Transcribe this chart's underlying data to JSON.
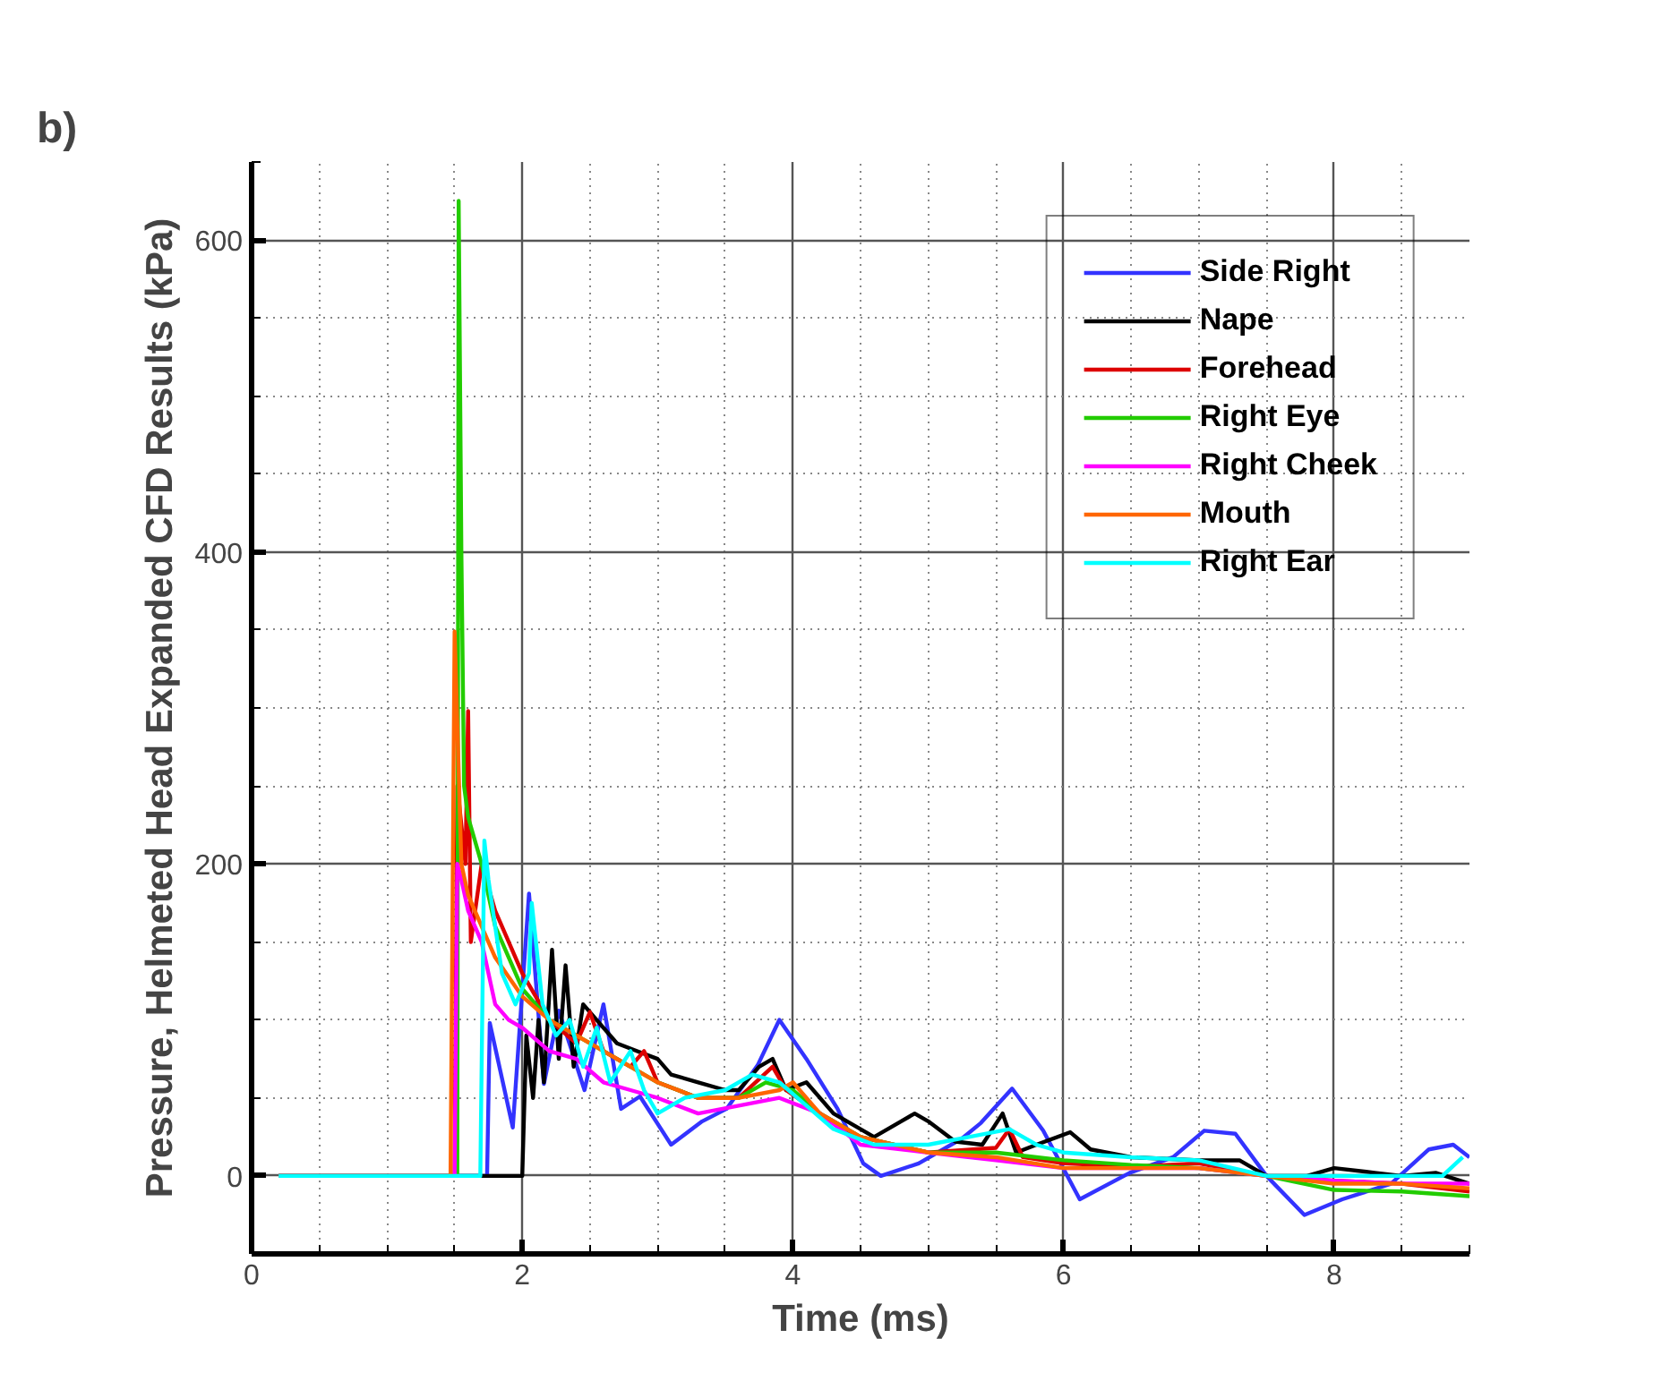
{
  "chart_data": {
    "type": "line",
    "xlabel": "Time (ms)",
    "ylabel": "Pressure, Helmeted Head Expanded CFD Results (kPa)",
    "annotations": [
      "b)"
    ],
    "xlim": [
      0,
      9
    ],
    "ylim": [
      -50,
      650
    ],
    "xticks": [
      0,
      2,
      4,
      6,
      8
    ],
    "yticks": [
      0,
      200,
      400,
      600
    ],
    "grid": true,
    "legend": "top right",
    "line_style": "solid",
    "series": [
      {
        "name": "Side Right",
        "color": "#3333ff",
        "x": [
          0.2,
          1.74,
          1.76,
          1.93,
          2.05,
          2.16,
          2.27,
          2.46,
          2.6,
          2.73,
          2.87,
          3.1,
          3.33,
          3.51,
          3.74,
          3.9,
          4.1,
          4.33,
          4.52,
          4.65,
          4.93,
          5.25,
          5.39,
          5.62,
          5.85,
          6.12,
          6.49,
          6.81,
          7.04,
          7.27,
          7.5,
          7.78,
          8.06,
          8.42,
          8.7,
          8.88,
          9.0
        ],
        "values": [
          0,
          0,
          98,
          31,
          181,
          59,
          106,
          55,
          110,
          43,
          51,
          20,
          35,
          43,
          71,
          100,
          75,
          43,
          8,
          0,
          8,
          24,
          34,
          56,
          29,
          -15,
          2,
          12,
          29,
          27,
          0,
          -25,
          -15,
          -5,
          17,
          20,
          12
        ]
      },
      {
        "name": "Nape",
        "color": "#000000",
        "x": [
          0.2,
          2.0,
          2.03,
          2.08,
          2.12,
          2.16,
          2.22,
          2.27,
          2.32,
          2.38,
          2.45,
          2.55,
          2.7,
          2.85,
          3.0,
          3.1,
          3.3,
          3.5,
          3.6,
          3.75,
          3.85,
          3.95,
          4.1,
          4.3,
          4.6,
          4.8,
          4.9,
          5.0,
          5.2,
          5.4,
          5.55,
          5.65,
          5.8,
          6.05,
          6.2,
          6.5,
          7.0,
          7.3,
          7.5,
          7.8,
          8.0,
          8.3,
          8.5,
          8.75,
          9.0
        ],
        "values": [
          0,
          0,
          90,
          50,
          100,
          60,
          145,
          75,
          135,
          70,
          110,
          100,
          85,
          80,
          75,
          65,
          60,
          55,
          55,
          70,
          75,
          55,
          60,
          40,
          25,
          35,
          40,
          35,
          22,
          20,
          40,
          15,
          20,
          28,
          17,
          12,
          10,
          10,
          0,
          0,
          5,
          2,
          0,
          2,
          -5
        ]
      },
      {
        "name": "Forehead",
        "color": "#dd0000",
        "x": [
          0.2,
          1.5,
          1.52,
          1.58,
          1.6,
          1.62,
          1.7,
          1.8,
          2.0,
          2.2,
          2.4,
          2.5,
          2.6,
          2.8,
          2.9,
          3.0,
          3.3,
          3.6,
          3.85,
          3.95,
          4.2,
          4.5,
          5.0,
          5.5,
          5.6,
          5.7,
          6.0,
          6.5,
          7.0,
          7.5,
          8.0,
          8.5,
          9.0
        ],
        "values": [
          0,
          0,
          250,
          200,
          298,
          150,
          200,
          170,
          130,
          100,
          85,
          105,
          80,
          70,
          80,
          60,
          50,
          50,
          70,
          55,
          40,
          25,
          15,
          18,
          30,
          12,
          8,
          6,
          8,
          0,
          -3,
          -5,
          -10
        ]
      },
      {
        "name": "Right Eye",
        "color": "#22cc00",
        "x": [
          0.2,
          1.52,
          1.53,
          1.55,
          1.57,
          1.6,
          1.7,
          1.8,
          2.0,
          2.2,
          2.5,
          2.8,
          3.0,
          3.3,
          3.6,
          3.8,
          4.0,
          4.2,
          4.5,
          5.0,
          5.5,
          6.0,
          6.5,
          7.0,
          7.5,
          8.0,
          8.5,
          9.0
        ],
        "values": [
          0,
          0,
          625,
          400,
          250,
          230,
          200,
          160,
          120,
          100,
          85,
          70,
          60,
          50,
          50,
          60,
          55,
          40,
          25,
          15,
          15,
          10,
          7,
          5,
          0,
          -9,
          -10,
          -13
        ]
      },
      {
        "name": "Right Cheek",
        "color": "#ff00ff",
        "x": [
          0.2,
          1.5,
          1.52,
          1.55,
          1.6,
          1.7,
          1.8,
          1.9,
          2.0,
          2.2,
          2.4,
          2.6,
          2.8,
          3.0,
          3.3,
          3.6,
          3.9,
          4.2,
          4.5,
          5.0,
          5.5,
          6.0,
          6.5,
          7.0,
          7.5,
          8.0,
          8.5,
          9.0
        ],
        "values": [
          0,
          0,
          200,
          190,
          170,
          150,
          110,
          100,
          95,
          80,
          75,
          60,
          55,
          50,
          40,
          45,
          50,
          40,
          20,
          15,
          10,
          5,
          5,
          5,
          0,
          -3,
          -5,
          -5
        ]
      },
      {
        "name": "Mouth",
        "color": "#ff6600",
        "x": [
          0.2,
          1.47,
          1.5,
          1.55,
          1.6,
          1.7,
          1.8,
          2.0,
          2.2,
          2.5,
          2.8,
          3.0,
          3.3,
          3.6,
          3.9,
          4.0,
          4.2,
          4.5,
          5.0,
          5.5,
          6.0,
          6.5,
          7.0,
          7.5,
          8.0,
          8.5,
          9.0
        ],
        "values": [
          0,
          0,
          349,
          200,
          180,
          160,
          140,
          115,
          100,
          85,
          70,
          60,
          50,
          50,
          55,
          60,
          40,
          25,
          15,
          12,
          5,
          5,
          5,
          0,
          -5,
          -5,
          -8
        ]
      },
      {
        "name": "Right Ear",
        "color": "#00ffff",
        "x": [
          0.2,
          1.69,
          1.72,
          1.75,
          1.85,
          1.95,
          2.05,
          2.07,
          2.15,
          2.25,
          2.35,
          2.45,
          2.55,
          2.65,
          2.8,
          2.9,
          3.0,
          3.2,
          3.5,
          3.7,
          3.9,
          4.1,
          4.3,
          4.6,
          5.0,
          5.3,
          5.6,
          5.8,
          6.0,
          6.5,
          7.0,
          7.5,
          8.0,
          8.5,
          8.8,
          8.95
        ],
        "values": [
          0,
          0,
          215,
          190,
          130,
          110,
          130,
          175,
          110,
          90,
          100,
          70,
          95,
          60,
          80,
          55,
          40,
          50,
          55,
          65,
          60,
          45,
          30,
          20,
          20,
          25,
          30,
          20,
          15,
          12,
          10,
          0,
          0,
          0,
          0,
          12
        ]
      }
    ]
  }
}
